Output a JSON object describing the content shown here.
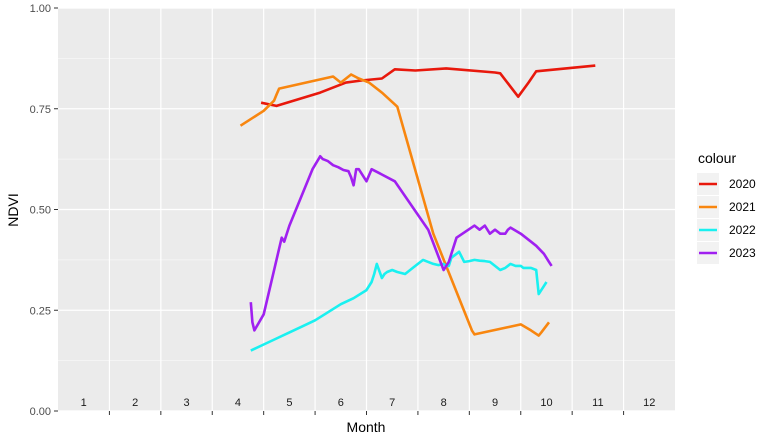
{
  "chart_data": {
    "type": "line",
    "title": "",
    "xlabel": "Month",
    "ylabel": "NDVI",
    "xlim": [
      0,
      12
    ],
    "ylim": [
      0,
      1
    ],
    "x_ticks": [
      {
        "value": 0.5,
        "label": "1"
      },
      {
        "value": 1.5,
        "label": "2"
      },
      {
        "value": 2.5,
        "label": "3"
      },
      {
        "value": 3.5,
        "label": "4"
      },
      {
        "value": 4.5,
        "label": "5"
      },
      {
        "value": 5.5,
        "label": "6"
      },
      {
        "value": 6.5,
        "label": "7"
      },
      {
        "value": 7.5,
        "label": "8"
      },
      {
        "value": 8.5,
        "label": "9"
      },
      {
        "value": 9.5,
        "label": "10"
      },
      {
        "value": 10.5,
        "label": "11"
      },
      {
        "value": 11.5,
        "label": "12"
      }
    ],
    "y_ticks": [
      {
        "value": 0.0,
        "label": "0.00"
      },
      {
        "value": 0.25,
        "label": "0.25"
      },
      {
        "value": 0.5,
        "label": "0.50"
      },
      {
        "value": 0.75,
        "label": "0.75"
      },
      {
        "value": 1.0,
        "label": "1.00"
      }
    ],
    "grid": true,
    "legend": {
      "title": "colour",
      "position": "right"
    },
    "series": [
      {
        "name": "2020",
        "color": "#e8180c",
        "x": [
          3.95,
          4.25,
          5.1,
          5.6,
          5.9,
          6.3,
          6.55,
          6.95,
          7.55,
          8.5,
          8.6,
          8.95,
          9.15,
          9.3,
          10.45
        ],
        "y": [
          0.765,
          0.757,
          0.79,
          0.815,
          0.82,
          0.825,
          0.848,
          0.845,
          0.85,
          0.84,
          0.838,
          0.78,
          0.815,
          0.843,
          0.857
        ]
      },
      {
        "name": "2021",
        "color": "#f8860f",
        "x": [
          3.55,
          4.0,
          4.2,
          4.25,
          4.3,
          5.35,
          5.5,
          5.7,
          5.85,
          6.05,
          6.3,
          6.6,
          7.3,
          8.05,
          8.1,
          9.0,
          9.2,
          9.35,
          9.4,
          9.55
        ],
        "y": [
          0.708,
          0.745,
          0.77,
          0.785,
          0.8,
          0.83,
          0.815,
          0.835,
          0.825,
          0.815,
          0.79,
          0.755,
          0.44,
          0.2,
          0.19,
          0.215,
          0.2,
          0.187,
          0.195,
          0.22
        ]
      },
      {
        "name": "2022",
        "color": "#19f0f0",
        "x": [
          3.75,
          4.0,
          4.25,
          4.5,
          4.75,
          5.0,
          5.25,
          5.5,
          5.75,
          6.0,
          6.1,
          6.15,
          6.2,
          6.3,
          6.35,
          6.4,
          6.5,
          6.6,
          6.75,
          6.9,
          7.0,
          7.1,
          7.2,
          7.3,
          7.4,
          7.5,
          7.55,
          7.6,
          7.65,
          7.7,
          7.75,
          7.8,
          7.9,
          8.0,
          8.1,
          8.2,
          8.3,
          8.4,
          8.5,
          8.6,
          8.7,
          8.8,
          8.9,
          9.0,
          9.05,
          9.1,
          9.2,
          9.3,
          9.35,
          9.4,
          9.45,
          9.5
        ],
        "y": [
          0.15,
          0.165,
          0.18,
          0.195,
          0.21,
          0.225,
          0.245,
          0.265,
          0.28,
          0.3,
          0.32,
          0.34,
          0.365,
          0.33,
          0.34,
          0.345,
          0.35,
          0.345,
          0.34,
          0.355,
          0.365,
          0.375,
          0.37,
          0.365,
          0.362,
          0.365,
          0.36,
          0.36,
          0.38,
          0.385,
          0.39,
          0.395,
          0.37,
          0.372,
          0.375,
          0.373,
          0.372,
          0.37,
          0.36,
          0.35,
          0.355,
          0.365,
          0.36,
          0.36,
          0.355,
          0.355,
          0.355,
          0.35,
          0.29,
          0.3,
          0.31,
          0.32
        ]
      },
      {
        "name": "2023",
        "color": "#a020f0",
        "x": [
          3.75,
          3.78,
          3.82,
          4.0,
          4.35,
          4.4,
          4.5,
          4.95,
          5.1,
          5.15,
          5.25,
          5.35,
          5.45,
          5.55,
          5.65,
          5.7,
          5.75,
          5.8,
          5.85,
          6.0,
          6.1,
          6.25,
          6.55,
          7.2,
          7.5,
          7.6,
          7.75,
          8.1,
          8.2,
          8.3,
          8.4,
          8.5,
          8.6,
          8.7,
          8.75,
          8.8,
          9.0,
          9.1,
          9.2,
          9.3,
          9.45,
          9.5,
          9.55,
          9.6
        ],
        "y": [
          0.27,
          0.22,
          0.2,
          0.24,
          0.43,
          0.42,
          0.46,
          0.6,
          0.632,
          0.625,
          0.62,
          0.61,
          0.605,
          0.598,
          0.595,
          0.58,
          0.56,
          0.6,
          0.6,
          0.57,
          0.6,
          0.59,
          0.57,
          0.45,
          0.35,
          0.37,
          0.43,
          0.46,
          0.45,
          0.46,
          0.44,
          0.45,
          0.44,
          0.44,
          0.45,
          0.455,
          0.44,
          0.43,
          0.42,
          0.41,
          0.39,
          0.38,
          0.37,
          0.36
        ]
      }
    ]
  }
}
